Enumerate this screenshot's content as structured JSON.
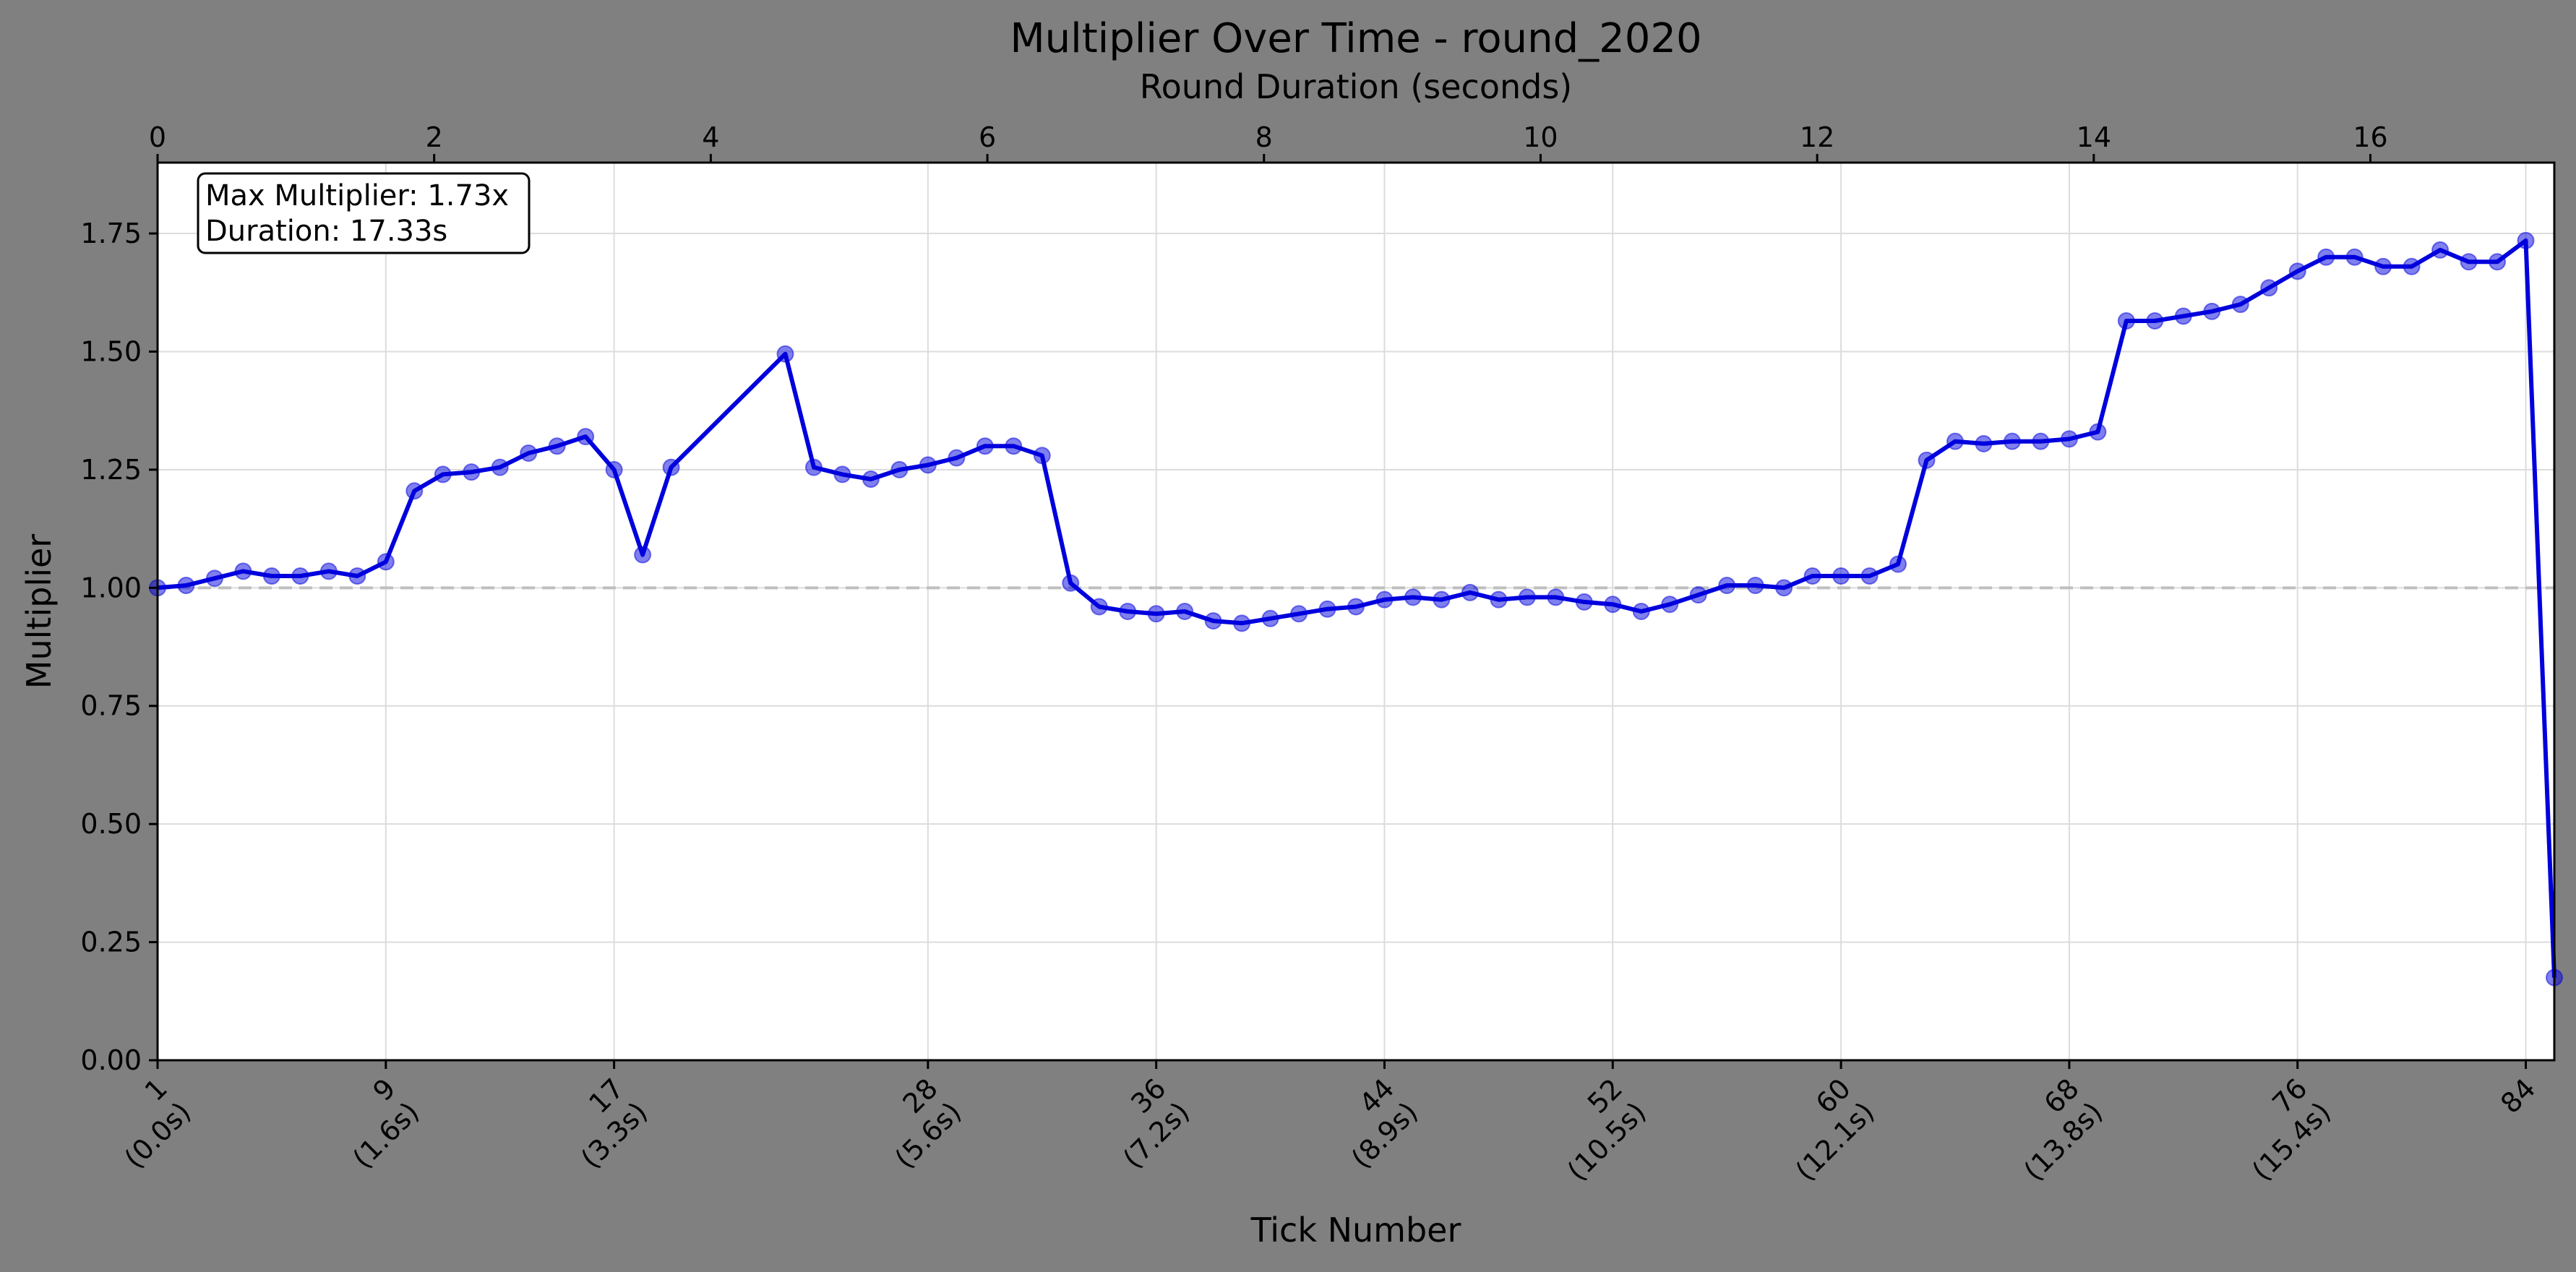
{
  "chart_data": {
    "type": "line",
    "title": "Multiplier Over Time - round_2020",
    "xlabel": "Tick Number",
    "ylabel": "Multiplier",
    "x2label": "Round Duration (seconds)",
    "xlim": [
      1,
      85
    ],
    "ylim": [
      0,
      1.9
    ],
    "x2lim": [
      0,
      17.33
    ],
    "yticks": [
      "0.00",
      "0.25",
      "0.50",
      "0.75",
      "1.00",
      "1.25",
      "1.50",
      "1.75"
    ],
    "yticks_values": [
      0,
      0.25,
      0.5,
      0.75,
      1.0,
      1.25,
      1.5,
      1.75
    ],
    "xticks": [
      {
        "tick": 1,
        "line1": "1",
        "line2": "(0.0s)"
      },
      {
        "tick": 9,
        "line1": "9",
        "line2": "(1.6s)"
      },
      {
        "tick": 17,
        "line1": "17",
        "line2": "(3.3s)"
      },
      {
        "tick": 28,
        "line1": "28",
        "line2": "(5.6s)"
      },
      {
        "tick": 36,
        "line1": "36",
        "line2": "(7.2s)"
      },
      {
        "tick": 44,
        "line1": "44",
        "line2": "(8.9s)"
      },
      {
        "tick": 52,
        "line1": "52",
        "line2": "(10.5s)"
      },
      {
        "tick": 60,
        "line1": "60",
        "line2": "(12.1s)"
      },
      {
        "tick": 68,
        "line1": "68",
        "line2": "(13.8s)"
      },
      {
        "tick": 76,
        "line1": "76",
        "line2": "(15.4s)"
      },
      {
        "tick": 84,
        "line1": "84",
        "line2": ""
      }
    ],
    "x2ticks": [
      {
        "value": 0,
        "label": "0"
      },
      {
        "value": 2,
        "label": "2"
      },
      {
        "value": 4,
        "label": "4"
      },
      {
        "value": 6,
        "label": "6"
      },
      {
        "value": 8,
        "label": "8"
      },
      {
        "value": 10,
        "label": "10"
      },
      {
        "value": 12,
        "label": "12"
      },
      {
        "value": 14,
        "label": "14"
      },
      {
        "value": 16,
        "label": "16"
      }
    ],
    "grid": true,
    "reference_line": 1.0,
    "series": [
      {
        "color": "#0000dd",
        "x": [
          1,
          2,
          3,
          4,
          5,
          6,
          7,
          8,
          9,
          10,
          11,
          12,
          13,
          14,
          15,
          16,
          17,
          18,
          19,
          23,
          24,
          25,
          26,
          27,
          28,
          29,
          30,
          31,
          32,
          33,
          34,
          35,
          36,
          37,
          38,
          39,
          40,
          41,
          42,
          43,
          44,
          45,
          46,
          47,
          48,
          49,
          50,
          51,
          52,
          53,
          54,
          55,
          56,
          57,
          58,
          59,
          60,
          61,
          62,
          63,
          64,
          65,
          66,
          67,
          68,
          69,
          70,
          71,
          72,
          73,
          74,
          75,
          76,
          77,
          78,
          79,
          80,
          81,
          82,
          83,
          84,
          85
        ],
        "y": [
          1.0,
          1.005,
          1.02,
          1.035,
          1.025,
          1.025,
          1.035,
          1.025,
          1.055,
          1.205,
          1.24,
          1.245,
          1.255,
          1.285,
          1.3,
          1.32,
          1.25,
          1.07,
          1.255,
          1.495,
          1.255,
          1.24,
          1.23,
          1.25,
          1.26,
          1.275,
          1.3,
          1.3,
          1.28,
          1.01,
          0.96,
          0.95,
          0.945,
          0.95,
          0.93,
          0.925,
          0.935,
          0.945,
          0.955,
          0.96,
          0.975,
          0.98,
          0.975,
          0.99,
          0.975,
          0.98,
          0.98,
          0.97,
          0.965,
          0.95,
          0.965,
          0.985,
          1.005,
          1.005,
          1.0,
          1.025,
          1.025,
          1.025,
          1.05,
          1.27,
          1.31,
          1.305,
          1.31,
          1.31,
          1.315,
          1.33,
          1.565,
          1.565,
          1.575,
          1.585,
          1.6,
          1.635,
          1.67,
          1.7,
          1.7,
          1.68,
          1.68,
          1.715,
          1.69,
          1.69,
          1.735,
          0.175
        ]
      }
    ],
    "annotation": {
      "line1": "Max Multiplier: 1.73x",
      "line2": "Duration: 17.33s"
    }
  }
}
